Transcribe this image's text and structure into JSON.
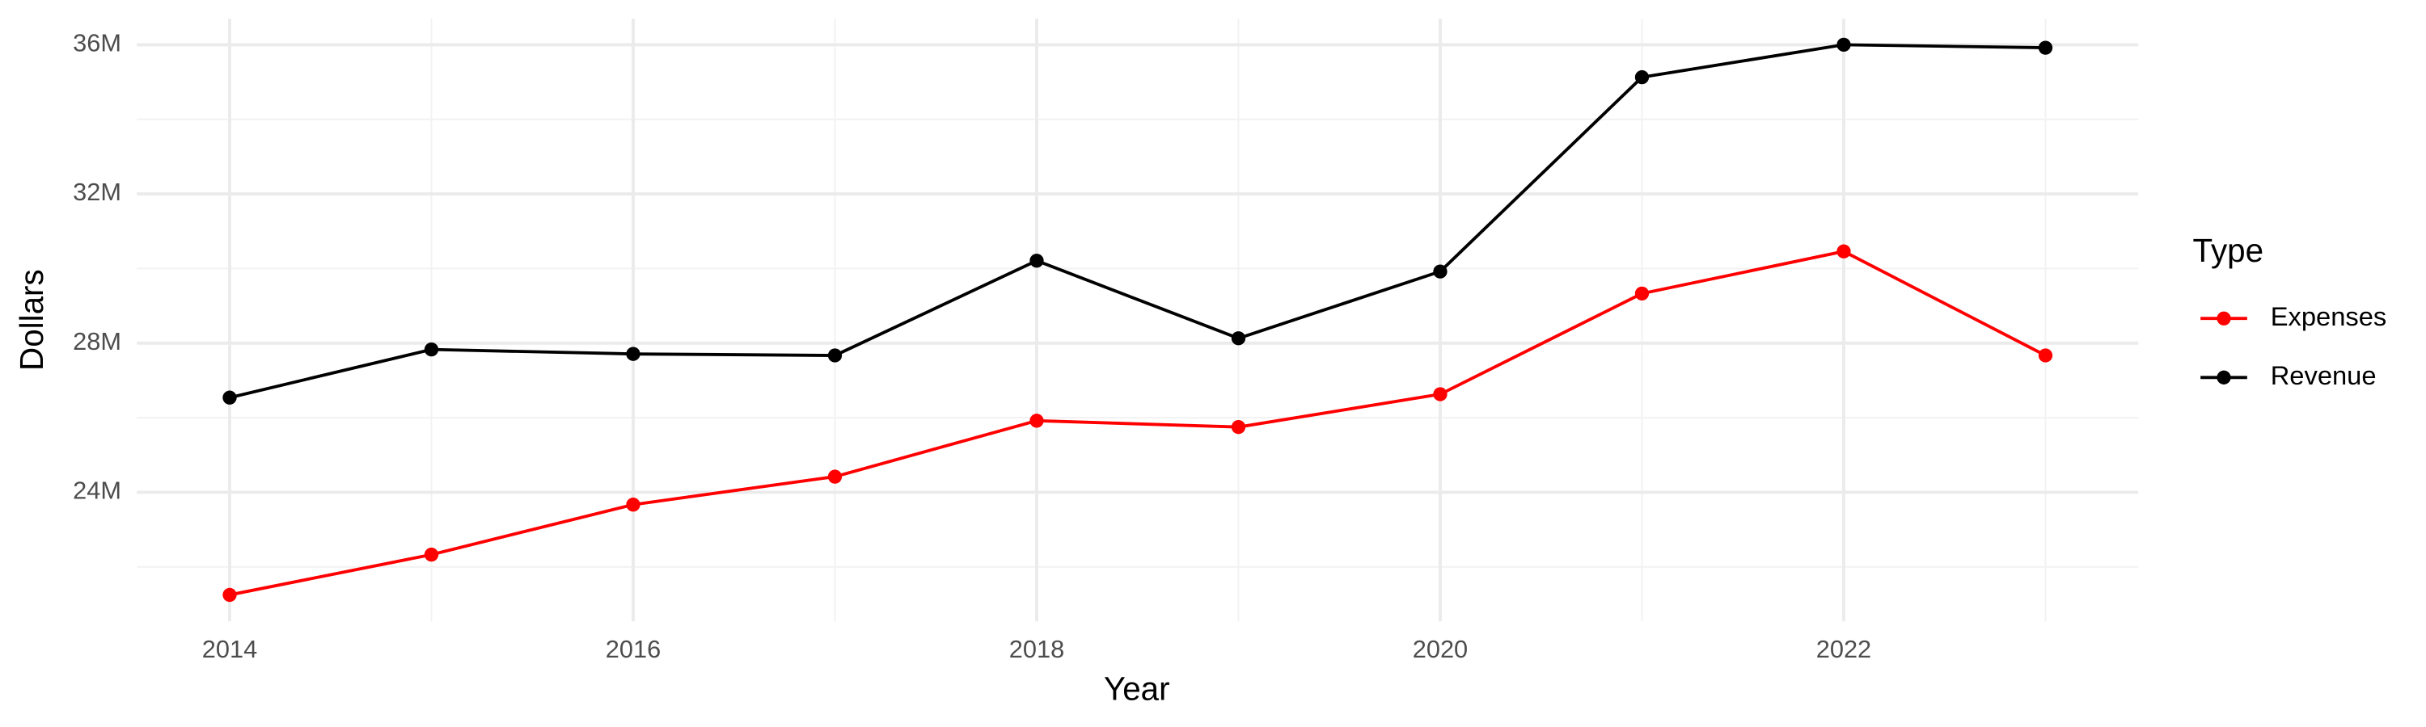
{
  "chart_data": {
    "type": "line",
    "x_label": "Year",
    "y_label": "Dollars",
    "x": [
      2014,
      2015,
      2016,
      2017,
      2018,
      2019,
      2020,
      2021,
      2022,
      2023
    ],
    "series": [
      {
        "name": "Expenses",
        "color": "#ff0000",
        "values": [
          21250000,
          22330000,
          23670000,
          24420000,
          25920000,
          25750000,
          26630000,
          29330000,
          30460000,
          27670000
        ]
      },
      {
        "name": "Revenue",
        "color": "#000000",
        "values": [
          26540000,
          27830000,
          27710000,
          27670000,
          30210000,
          28130000,
          29920000,
          35130000,
          36000000,
          35920000
        ]
      }
    ],
    "xlim": [
      2013.54,
      2023.46
    ],
    "xticks": [
      2014,
      2016,
      2018,
      2020,
      2022
    ],
    "ylim": [
      20540000,
      36700000
    ],
    "yticks": [
      {
        "value": 24000000,
        "label": "24M"
      },
      {
        "value": 28000000,
        "label": "28M"
      },
      {
        "value": 32000000,
        "label": "32M"
      },
      {
        "value": 36000000,
        "label": "36M"
      }
    ],
    "grid": true,
    "legend_title": "Type",
    "legend_position": "right"
  }
}
